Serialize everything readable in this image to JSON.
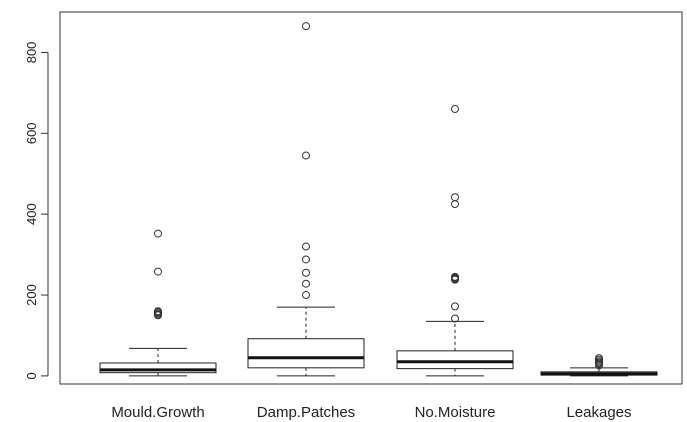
{
  "chart_data": {
    "type": "boxplot",
    "title": "",
    "xlabel": "",
    "ylabel": "",
    "ylim": [
      -20,
      900
    ],
    "y_ticks": [
      0,
      200,
      400,
      600,
      800
    ],
    "y_tick_labels": [
      "0",
      "200",
      "400",
      "600",
      "800"
    ],
    "grid": false,
    "legend": "none",
    "categories": [
      "Mould.Growth",
      "Damp.Patches",
      "No.Moisture",
      "Leakages"
    ],
    "boxes": [
      {
        "name": "Mould.Growth",
        "whisker_low": 0,
        "q1": 8,
        "median": 15,
        "q3": 32,
        "whisker_high": 68,
        "outliers": [
          150,
          152,
          155,
          158,
          160,
          258,
          352
        ]
      },
      {
        "name": "Damp.Patches",
        "whisker_low": 0,
        "q1": 20,
        "median": 45,
        "q3": 92,
        "whisker_high": 170,
        "outliers": [
          200,
          228,
          255,
          288,
          320,
          545,
          865
        ]
      },
      {
        "name": "No.Moisture",
        "whisker_low": 0,
        "q1": 18,
        "median": 35,
        "q3": 62,
        "whisker_high": 135,
        "outliers": [
          142,
          172,
          238,
          240,
          242,
          244,
          245,
          425,
          442,
          660
        ]
      },
      {
        "name": "Leakages",
        "whisker_low": 0,
        "q1": 2,
        "median": 5,
        "q3": 10,
        "whisker_high": 20,
        "outliers": [
          26,
          30,
          33,
          36,
          40,
          44
        ]
      }
    ]
  }
}
